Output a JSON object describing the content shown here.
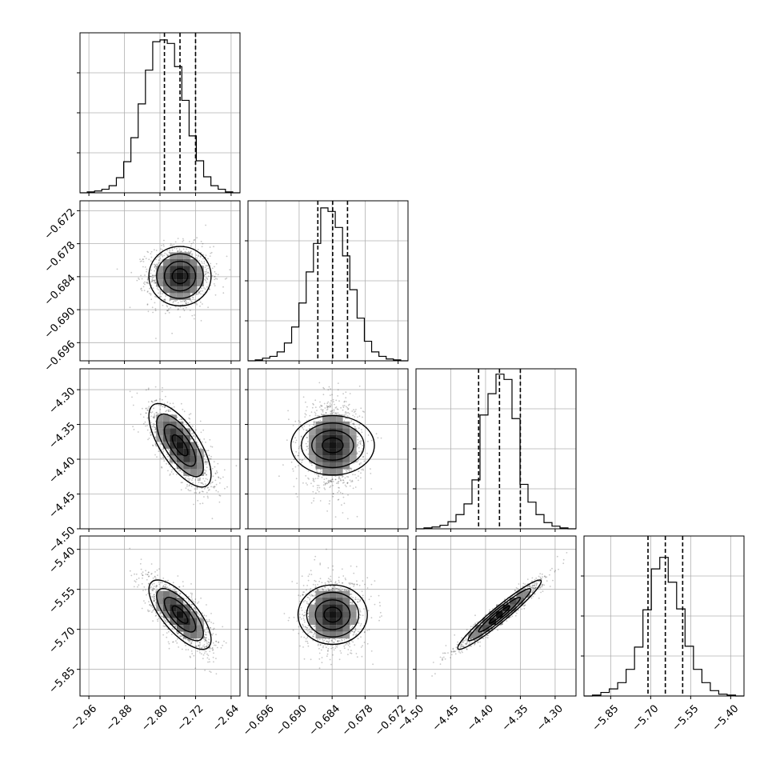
{
  "chart_data": {
    "type": "corner",
    "params": [
      {
        "range": [
          -2.98,
          -2.62
        ],
        "ticks": [
          -2.96,
          -2.88,
          -2.8,
          -2.72,
          -2.64
        ],
        "tick_labels": [
          "−2.96",
          "−2.88",
          "−2.80",
          "−2.72",
          "−2.64"
        ],
        "quantiles": [
          -2.79,
          -2.755,
          -2.72
        ],
        "hist": [
          0,
          1,
          2,
          4,
          8,
          17,
          35,
          62,
          100,
          138,
          170,
          172,
          168,
          142,
          104,
          64,
          36,
          18,
          8,
          4,
          1,
          0
        ],
        "hist_ylim": [
          0,
          180
        ]
      },
      {
        "range": [
          -0.6993,
          -0.6702
        ],
        "ticks": [
          -0.696,
          -0.69,
          -0.684,
          -0.678,
          -0.672
        ],
        "tick_labels": [
          "−0.696",
          "−0.690",
          "−0.684",
          "−0.678",
          "−0.672"
        ],
        "quantiles": [
          -0.6866,
          -0.6839,
          -0.6812
        ],
        "hist": [
          0,
          1,
          3,
          5,
          10,
          20,
          38,
          65,
          100,
          132,
          172,
          168,
          150,
          118,
          80,
          48,
          22,
          10,
          5,
          2,
          1,
          0
        ],
        "hist_ylim": [
          0,
          180
        ]
      },
      {
        "range": [
          -4.5,
          -4.27
        ],
        "ticks": [
          -4.5,
          -4.45,
          -4.4,
          -4.35,
          -4.3
        ],
        "tick_labels": [
          "−4.50",
          "−4.45",
          "−4.40",
          "−4.35",
          "−4.30"
        ],
        "quantiles": [
          -4.41,
          -4.38,
          -4.35
        ],
        "hist": [
          0,
          1,
          2,
          4,
          8,
          16,
          28,
          55,
          128,
          152,
          174,
          168,
          124,
          50,
          30,
          16,
          7,
          3,
          1,
          0
        ],
        "hist_ylim": [
          0,
          180
        ]
      },
      {
        "range": [
          -5.95,
          -5.35
        ],
        "ticks": [
          -5.85,
          -5.7,
          -5.55,
          -5.4
        ],
        "tick_labels": [
          "−5.85",
          "−5.70",
          "−5.55",
          "−5.40"
        ],
        "quantiles": [
          -5.71,
          -5.645,
          -5.58
        ],
        "hist": [
          0,
          1,
          4,
          8,
          15,
          30,
          55,
          97,
          143,
          156,
          128,
          98,
          56,
          30,
          15,
          6,
          2,
          1,
          0
        ],
        "hist_ylim": [
          0,
          180
        ]
      }
    ],
    "correlations": [
      {
        "pair": [
          1,
          0
        ],
        "rho": 0.0
      },
      {
        "pair": [
          2,
          0
        ],
        "rho": -0.7
      },
      {
        "pair": [
          2,
          1
        ],
        "rho": 0.0
      },
      {
        "pair": [
          3,
          0
        ],
        "rho": -0.72
      },
      {
        "pair": [
          3,
          1
        ],
        "rho": 0.0
      },
      {
        "pair": [
          3,
          2
        ],
        "rho": 0.96
      }
    ],
    "grid": true,
    "colors": {
      "axes": "#000000",
      "grid": "#b0b0b0",
      "points": "#000000",
      "hist": "#000000"
    }
  }
}
